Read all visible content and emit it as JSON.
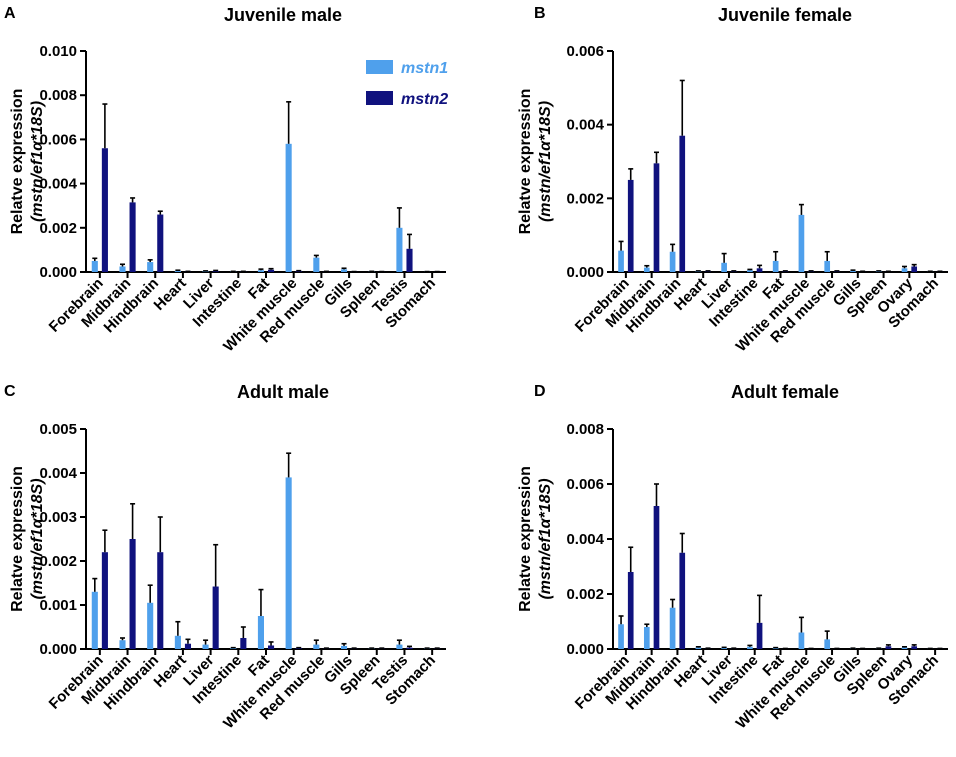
{
  "colors": {
    "mstn1": "#4fa0ec",
    "mstn2": "#10127e",
    "axis": "#000000"
  },
  "legend": [
    {
      "label": "mstn1",
      "color": "#4fa0ec"
    },
    {
      "label": "mstn2",
      "color": "#10127e"
    }
  ],
  "chart_data": [
    {
      "letter": "A",
      "type": "bar",
      "title": "Juvenile male",
      "ylabel": "Relatve expression",
      "ylabel_sub": "(mstn/ef1α*18S)",
      "ylim": [
        0,
        0.01
      ],
      "yticks": [
        "0.000",
        "0.002",
        "0.004",
        "0.006",
        "0.008",
        "0.010"
      ],
      "categories": [
        "Forebrain",
        "Midbrain",
        "Hindbrain",
        "Heart",
        "Liver",
        "Intestine",
        "Fat",
        "White muscle",
        "Red muscle",
        "Gills",
        "Spleen",
        "Testis",
        "Stomach"
      ],
      "series": [
        {
          "name": "mstn1",
          "values": [
            0.0005,
            0.00025,
            0.00045,
            5e-05,
            3e-05,
            2e-05,
            8e-05,
            0.0058,
            0.00065,
            0.00012,
            2e-05,
            0.002,
            1e-05
          ],
          "errors": [
            0.00012,
            0.0001,
            0.0001,
            3e-05,
            2e-05,
            1e-05,
            5e-05,
            0.0019,
            0.0001,
            5e-05,
            1e-05,
            0.0009,
            1e-05
          ]
        },
        {
          "name": "mstn2",
          "values": [
            0.0056,
            0.00315,
            0.0026,
            2e-05,
            4e-05,
            2e-05,
            0.0001,
            4e-05,
            2e-05,
            1e-05,
            1e-05,
            0.00105,
            1e-05
          ],
          "errors": [
            0.002,
            0.0002,
            0.00015,
            1e-05,
            3e-05,
            1e-05,
            5e-05,
            2e-05,
            1e-05,
            1e-05,
            1e-05,
            0.00065,
            1e-05
          ]
        }
      ]
    },
    {
      "letter": "B",
      "type": "bar",
      "title": "Juvenile female",
      "ylabel": "Relatve expression",
      "ylabel_sub": "(mstn/ef1α*18S)",
      "ylim": [
        0,
        0.006
      ],
      "yticks": [
        "0.000",
        "0.002",
        "0.004",
        "0.006"
      ],
      "categories": [
        "Forebrain",
        "Midbrain",
        "Hindbrain",
        "Heart",
        "Liver",
        "Intestine",
        "Fat",
        "White muscle",
        "Red muscle",
        "Gills",
        "Spleen",
        "Ovary",
        "Stomach"
      ],
      "series": [
        {
          "name": "mstn1",
          "values": [
            0.00058,
            0.00012,
            0.00055,
            2e-05,
            0.00025,
            5e-05,
            0.0003,
            0.00155,
            0.0003,
            3e-05,
            2e-05,
            0.0001,
            1e-05
          ],
          "errors": [
            0.00025,
            5e-05,
            0.0002,
            1e-05,
            0.00025,
            2e-05,
            0.00025,
            0.00028,
            0.00025,
            2e-05,
            1e-05,
            5e-05,
            1e-05
          ]
        },
        {
          "name": "mstn2",
          "values": [
            0.0025,
            0.00295,
            0.0037,
            2e-05,
            2e-05,
            0.0001,
            2e-05,
            2e-05,
            2e-05,
            1e-05,
            1e-05,
            0.00015,
            1e-05
          ],
          "errors": [
            0.0003,
            0.0003,
            0.0015,
            1e-05,
            1e-05,
            8e-05,
            1e-05,
            1e-05,
            1e-05,
            1e-05,
            1e-05,
            5e-05,
            1e-05
          ]
        }
      ]
    },
    {
      "letter": "C",
      "type": "bar",
      "title": "Adult male",
      "ylabel": "Relatve expression",
      "ylabel_sub": "(mstn/ef1α*18S)",
      "ylim": [
        0,
        0.005
      ],
      "yticks": [
        "0.000",
        "0.001",
        "0.002",
        "0.003",
        "0.004",
        "0.005"
      ],
      "categories": [
        "Forebrain",
        "Midbrain",
        "Hindbrain",
        "Heart",
        "Liver",
        "Intestine",
        "Fat",
        "White muscle",
        "Red muscle",
        "Gills",
        "Spleen",
        "Testis",
        "Stomach"
      ],
      "series": [
        {
          "name": "mstn1",
          "values": [
            0.0013,
            0.0002,
            0.00105,
            0.0003,
            0.0001,
            2e-05,
            0.00075,
            0.0039,
            0.0001,
            7e-05,
            1e-05,
            0.0001,
            1e-05
          ],
          "errors": [
            0.0003,
            5e-05,
            0.0004,
            0.00032,
            0.0001,
            1e-05,
            0.0006,
            0.00055,
            0.0001,
            5e-05,
            1e-05,
            0.0001,
            1e-05
          ]
        },
        {
          "name": "mstn2",
          "values": [
            0.0022,
            0.0025,
            0.0022,
            0.00012,
            0.00142,
            0.00025,
            8e-05,
            2e-05,
            1e-05,
            1e-05,
            1e-05,
            3e-05,
            1e-05
          ],
          "errors": [
            0.0005,
            0.0008,
            0.0008,
            0.0001,
            0.00095,
            0.00025,
            8e-05,
            1e-05,
            1e-05,
            1e-05,
            1e-05,
            3e-05,
            1e-05
          ]
        }
      ]
    },
    {
      "letter": "D",
      "type": "bar",
      "title": "Adult female",
      "ylabel": "Relatve expression",
      "ylabel_sub": "(mstn/ef1α*18S)",
      "ylim": [
        0,
        0.008
      ],
      "yticks": [
        "0.000",
        "0.002",
        "0.004",
        "0.006",
        "0.008"
      ],
      "categories": [
        "Forebrain",
        "Midbrain",
        "Hindbrain",
        "Heart",
        "Liver",
        "Intestine",
        "Fat",
        "White muscle",
        "Red muscle",
        "Gills",
        "Spleen",
        "Ovary",
        "Stomach"
      ],
      "series": [
        {
          "name": "mstn1",
          "values": [
            0.0009,
            0.0008,
            0.0015,
            5e-05,
            4e-05,
            8e-05,
            3e-05,
            0.0006,
            0.00035,
            2e-05,
            2e-05,
            5e-05,
            1e-05
          ],
          "errors": [
            0.0003,
            0.0001,
            0.0003,
            3e-05,
            2e-05,
            5e-05,
            2e-05,
            0.00055,
            0.0003,
            1e-05,
            1e-05,
            3e-05,
            1e-05
          ]
        },
        {
          "name": "mstn2",
          "values": [
            0.0028,
            0.0052,
            0.0035,
            2e-05,
            2e-05,
            0.00095,
            1e-05,
            1e-05,
            1e-05,
            1e-05,
            0.0001,
            0.0001,
            1e-05
          ],
          "errors": [
            0.0009,
            0.0008,
            0.0007,
            1e-05,
            1e-05,
            0.001,
            1e-05,
            1e-05,
            1e-05,
            1e-05,
            5e-05,
            5e-05,
            1e-05
          ]
        }
      ]
    }
  ]
}
